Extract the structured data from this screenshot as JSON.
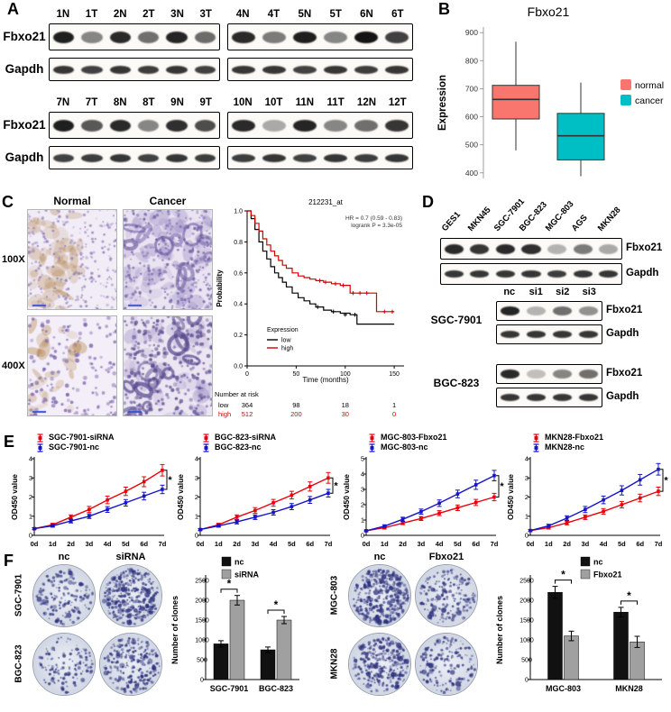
{
  "labels": {
    "A": "A",
    "B": "B",
    "C": "C",
    "D": "D",
    "E": "E",
    "F": "F"
  },
  "colors": {
    "normal_box": "#F8766D",
    "cancer_box": "#00BFC4",
    "red_series": "#E8000B",
    "blue_series": "#1414C8",
    "km_low": "#000000",
    "km_high": "#D40000",
    "bar_nc": "#111111",
    "bar_treat": "#A0A0A0"
  },
  "panelA": {
    "row_labels": [
      "Fbxo21",
      "Gapdh"
    ],
    "blocks": [
      {
        "groups": [
          {
            "lanes": [
              "1N",
              "1T",
              "2N",
              "2T",
              "3N",
              "3T"
            ],
            "fbxo21": [
              0.95,
              0.5,
              0.9,
              0.6,
              0.92,
              0.62
            ],
            "gapdh": [
              0.85,
              0.8,
              0.85,
              0.82,
              0.85,
              0.8
            ]
          },
          {
            "lanes": [
              "4N",
              "4T",
              "5N",
              "5T",
              "6N",
              "6T"
            ],
            "fbxo21": [
              0.9,
              0.55,
              0.95,
              0.5,
              1.0,
              0.8
            ],
            "gapdh": [
              0.85,
              0.85,
              0.8,
              0.85,
              0.82,
              0.85
            ]
          }
        ]
      },
      {
        "groups": [
          {
            "lanes": [
              "7N",
              "7T",
              "8N",
              "8T",
              "9N",
              "9T"
            ],
            "fbxo21": [
              0.95,
              0.7,
              0.9,
              0.5,
              0.88,
              0.75
            ],
            "gapdh": [
              0.8,
              0.82,
              0.85,
              0.8,
              0.85,
              0.82
            ]
          },
          {
            "lanes": [
              "10N",
              "10T",
              "11N",
              "11T",
              "12N",
              "12T"
            ],
            "fbxo21": [
              0.9,
              0.35,
              0.92,
              0.5,
              0.6,
              0.85
            ],
            "gapdh": [
              0.82,
              0.85,
              0.8,
              0.85,
              0.82,
              0.85
            ]
          }
        ]
      }
    ]
  },
  "panelC": {
    "col_headers": [
      "Normal",
      "Cancer"
    ],
    "row_headers": [
      "100X",
      "400X"
    ]
  },
  "panelD": {
    "cell_lines": [
      "GES1",
      "MKN45",
      "SGC-7901",
      "BGC-823",
      "MGC-803",
      "AGS",
      "MKN28"
    ],
    "row_labels": [
      "Fbxo21",
      "Gapdh"
    ],
    "fbxo21": [
      0.9,
      0.85,
      0.9,
      0.88,
      0.3,
      0.55,
      0.35
    ],
    "gapdh": [
      0.85,
      0.85,
      0.85,
      0.85,
      0.82,
      0.85,
      0.85
    ],
    "si_lanes": [
      "nc",
      "si1",
      "si2",
      "si3"
    ],
    "si_blocks": [
      {
        "cell": "SGC-7901",
        "fbxo21": [
          0.92,
          0.3,
          0.6,
          0.45
        ],
        "gapdh": [
          0.85,
          0.85,
          0.85,
          0.85
        ]
      },
      {
        "cell": "BGC-823",
        "fbxo21": [
          0.9,
          0.25,
          0.5,
          0.6
        ],
        "gapdh": [
          0.85,
          0.85,
          0.85,
          0.85
        ]
      }
    ]
  },
  "panelF": {
    "groups": [
      {
        "col_labels": [
          "nc",
          "siRNA"
        ],
        "row_labels": [
          "SGC-7901",
          "BGC-823"
        ],
        "dish_density": [
          [
            900,
            2000
          ],
          [
            750,
            1500
          ]
        ]
      },
      {
        "col_labels": [
          "nc",
          "Fbxo21"
        ],
        "row_labels": [
          "MGC-803",
          "MKN28"
        ],
        "dish_density": [
          [
            2200,
            1100
          ],
          [
            1700,
            950
          ]
        ]
      }
    ]
  },
  "chart_data": [
    {
      "type": "box",
      "panel": "B",
      "title": "Fbxo21",
      "ylabel": "Expression",
      "ylim": [
        380,
        920
      ],
      "yticks": [
        400,
        500,
        600,
        700,
        800,
        900
      ],
      "groups": [
        {
          "name": "normal",
          "color": "#F8766D",
          "whisker_low": 480,
          "q1": 592,
          "median": 662,
          "q3": 712,
          "whisker_high": 868
        },
        {
          "name": "cancer",
          "color": "#00BFC4",
          "whisker_low": 388,
          "q1": 446,
          "median": 532,
          "q3": 612,
          "whisker_high": 722
        }
      ],
      "legend_position": "right"
    },
    {
      "type": "line",
      "subtype": "km_survival",
      "panel": "C",
      "title": "212231_at",
      "annotations": [
        "HR = 0.7 (0.59 - 0.83)",
        "logrank P = 3.3e-05"
      ],
      "xlabel": "Time (months)",
      "ylabel": "Probability",
      "xlim": [
        0,
        160
      ],
      "xticks": [
        0,
        50,
        100,
        150
      ],
      "ylim": [
        0,
        1
      ],
      "yticks": [
        0,
        0.2,
        0.4,
        0.6,
        0.8,
        1
      ],
      "legend_title": "Expression",
      "series": [
        {
          "name": "low",
          "color": "#000000",
          "points": [
            [
              0,
              1
            ],
            [
              4,
              0.95
            ],
            [
              8,
              0.88
            ],
            [
              12,
              0.8
            ],
            [
              16,
              0.74
            ],
            [
              20,
              0.69
            ],
            [
              24,
              0.64
            ],
            [
              28,
              0.6
            ],
            [
              32,
              0.57
            ],
            [
              36,
              0.54
            ],
            [
              40,
              0.51
            ],
            [
              46,
              0.47
            ],
            [
              52,
              0.44
            ],
            [
              58,
              0.42
            ],
            [
              64,
              0.4
            ],
            [
              70,
              0.38
            ],
            [
              78,
              0.36
            ],
            [
              86,
              0.35
            ],
            [
              95,
              0.34
            ],
            [
              105,
              0.33
            ],
            [
              112,
              0.27
            ],
            [
              118,
              0.27
            ],
            [
              150,
              0.27
            ]
          ],
          "censors": [
            [
              72,
              0.38
            ],
            [
              88,
              0.35
            ],
            [
              100,
              0.33
            ],
            [
              110,
              0.33
            ]
          ]
        },
        {
          "name": "high",
          "color": "#D40000",
          "points": [
            [
              0,
              1
            ],
            [
              4,
              0.97
            ],
            [
              8,
              0.92
            ],
            [
              12,
              0.87
            ],
            [
              16,
              0.82
            ],
            [
              20,
              0.78
            ],
            [
              24,
              0.74
            ],
            [
              28,
              0.71
            ],
            [
              32,
              0.68
            ],
            [
              36,
              0.65
            ],
            [
              40,
              0.63
            ],
            [
              46,
              0.6
            ],
            [
              52,
              0.58
            ],
            [
              58,
              0.57
            ],
            [
              64,
              0.56
            ],
            [
              70,
              0.55
            ],
            [
              78,
              0.54
            ],
            [
              86,
              0.53
            ],
            [
              95,
              0.52
            ],
            [
              105,
              0.47
            ],
            [
              125,
              0.47
            ],
            [
              132,
              0.35
            ],
            [
              150,
              0.35
            ]
          ],
          "censors": [
            [
              74,
              0.55
            ],
            [
              80,
              0.54
            ],
            [
              90,
              0.53
            ],
            [
              98,
              0.52
            ],
            [
              108,
              0.47
            ],
            [
              115,
              0.47
            ],
            [
              122,
              0.47
            ],
            [
              140,
              0.35
            ],
            [
              148,
              0.35
            ]
          ]
        }
      ],
      "risk_table": {
        "title": "Number at risk",
        "times": [
          0,
          50,
          100,
          150
        ],
        "rows": [
          {
            "name": "low",
            "values": [
              364,
              98,
              18,
              1
            ]
          },
          {
            "name": "high",
            "values": [
              512,
              200,
              30,
              0
            ]
          }
        ]
      }
    },
    {
      "type": "line",
      "subtype": "growth",
      "panel": "E1",
      "ylabel": "OD450 value",
      "ylim": [
        0,
        4
      ],
      "yticks": [
        0,
        1,
        2,
        3,
        4
      ],
      "categories": [
        "0d",
        "1d",
        "2d",
        "3d",
        "4d",
        "5d",
        "6d",
        "7d"
      ],
      "series": [
        {
          "name": "SGC-7901-siRNA",
          "color": "#E8000B",
          "values": [
            0.35,
            0.55,
            0.95,
            1.35,
            1.85,
            2.3,
            2.8,
            3.4
          ],
          "errors": [
            0.05,
            0.08,
            0.12,
            0.16,
            0.2,
            0.22,
            0.26,
            0.3
          ]
        },
        {
          "name": "SGC-7901-nc",
          "color": "#1414C8",
          "values": [
            0.35,
            0.5,
            0.75,
            1.0,
            1.35,
            1.7,
            2.05,
            2.4
          ],
          "errors": [
            0.05,
            0.07,
            0.1,
            0.12,
            0.15,
            0.17,
            0.2,
            0.22
          ]
        }
      ],
      "sig": "*"
    },
    {
      "type": "line",
      "subtype": "growth",
      "panel": "E2",
      "ylabel": "OD450 value",
      "ylim": [
        0,
        4
      ],
      "yticks": [
        0,
        1,
        2,
        3,
        4
      ],
      "categories": [
        "0d",
        "1d",
        "2d",
        "3d",
        "4d",
        "5d",
        "6d",
        "7d"
      ],
      "series": [
        {
          "name": "BGC-823-siRNA",
          "color": "#E8000B",
          "values": [
            0.3,
            0.55,
            0.95,
            1.3,
            1.7,
            2.1,
            2.55,
            3.0
          ],
          "errors": [
            0.05,
            0.08,
            0.12,
            0.15,
            0.18,
            0.2,
            0.24,
            0.28
          ]
        },
        {
          "name": "BGC-823-nc",
          "color": "#1414C8",
          "values": [
            0.3,
            0.5,
            0.7,
            0.95,
            1.2,
            1.5,
            1.85,
            2.2
          ],
          "errors": [
            0.05,
            0.07,
            0.1,
            0.12,
            0.14,
            0.16,
            0.18,
            0.2
          ]
        }
      ],
      "sig": "*"
    },
    {
      "type": "line",
      "subtype": "growth",
      "panel": "E3",
      "ylabel": "OD450 value",
      "ylim": [
        0,
        5
      ],
      "yticks": [
        0,
        1,
        2,
        3,
        4,
        5
      ],
      "categories": [
        "0d",
        "1d",
        "2d",
        "3d",
        "4d",
        "5d",
        "6d",
        "7d"
      ],
      "series": [
        {
          "name": "MGC-803-Fbxo21",
          "color": "#E8000B",
          "values": [
            0.3,
            0.5,
            0.8,
            1.1,
            1.45,
            1.8,
            2.15,
            2.5
          ],
          "errors": [
            0.05,
            0.08,
            0.1,
            0.13,
            0.16,
            0.18,
            0.2,
            0.24
          ]
        },
        {
          "name": "MGC-803-nc",
          "color": "#1414C8",
          "values": [
            0.3,
            0.6,
            1.05,
            1.55,
            2.1,
            2.7,
            3.3,
            3.9
          ],
          "errors": [
            0.05,
            0.09,
            0.13,
            0.17,
            0.21,
            0.25,
            0.3,
            0.34
          ]
        }
      ],
      "sig": "*"
    },
    {
      "type": "line",
      "subtype": "growth",
      "panel": "E4",
      "ylabel": "OD450 value",
      "ylim": [
        0,
        4
      ],
      "yticks": [
        0,
        1,
        2,
        3,
        4
      ],
      "categories": [
        "0d",
        "1d",
        "2d",
        "3d",
        "4d",
        "5d",
        "6d",
        "7d"
      ],
      "series": [
        {
          "name": "MKN28-Fbxo21",
          "color": "#E8000B",
          "values": [
            0.25,
            0.4,
            0.65,
            0.95,
            1.25,
            1.6,
            1.95,
            2.3
          ],
          "errors": [
            0.05,
            0.07,
            0.1,
            0.12,
            0.15,
            0.17,
            0.2,
            0.22
          ]
        },
        {
          "name": "MKN28-nc",
          "color": "#1414C8",
          "values": [
            0.25,
            0.5,
            0.9,
            1.35,
            1.85,
            2.35,
            2.9,
            3.45
          ],
          "errors": [
            0.05,
            0.08,
            0.12,
            0.16,
            0.2,
            0.24,
            0.28,
            0.3
          ]
        }
      ],
      "sig": "*"
    },
    {
      "type": "bar",
      "panel": "F1",
      "ylabel": "Number of clones",
      "ylim": [
        0,
        2500
      ],
      "yticks": [
        0,
        500,
        1000,
        1500,
        2000,
        2500
      ],
      "categories": [
        "SGC-7901",
        "BGC-823"
      ],
      "series": [
        {
          "name": "nc",
          "color": "#111111",
          "values": [
            900,
            750
          ],
          "errors": [
            80,
            70
          ]
        },
        {
          "name": "siRNA",
          "color": "#A0A0A0",
          "values": [
            2000,
            1500
          ],
          "errors": [
            120,
            90
          ]
        }
      ],
      "sig": [
        "*",
        "*"
      ]
    },
    {
      "type": "bar",
      "panel": "F2",
      "ylabel": "Number of clones",
      "ylim": [
        0,
        2500
      ],
      "yticks": [
        0,
        500,
        1000,
        1500,
        2000,
        2500
      ],
      "categories": [
        "MGC-803",
        "MKN28"
      ],
      "series": [
        {
          "name": "nc",
          "color": "#111111",
          "values": [
            2200,
            1700
          ],
          "errors": [
            150,
            120
          ]
        },
        {
          "name": "Fbxo21",
          "color": "#A0A0A0",
          "values": [
            1100,
            950
          ],
          "errors": [
            120,
            140
          ]
        }
      ],
      "sig": [
        "*",
        "*"
      ]
    }
  ]
}
